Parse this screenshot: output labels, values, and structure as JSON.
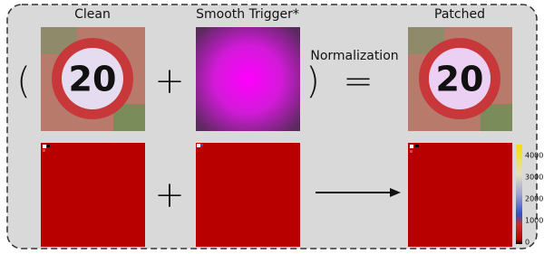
{
  "labels": {
    "clean": "Clean",
    "trigger": "Smooth Trigger*",
    "patched": "Patched",
    "normalization": "Normalization"
  },
  "operators": {
    "open_paren": "(",
    "plus_top": "+",
    "close_paren": ")",
    "equals": "=",
    "plus_bottom": "+"
  },
  "sign_text": "20",
  "colorbar": {
    "ticks": [
      0,
      1000,
      2000,
      3000,
      4000
    ]
  }
}
